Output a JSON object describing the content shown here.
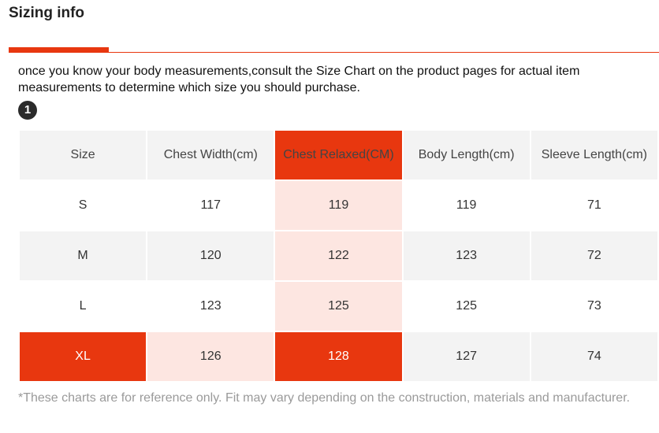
{
  "header": {
    "title": "Sizing info"
  },
  "intro_text": "once you know your body measurements,consult the Size Chart on the product pages for actual item measurements to determine which size you should purchase.",
  "step_badge": "1",
  "table": {
    "columns": [
      "Size",
      "Chest Width(cm)",
      "Chest Relaxed(CM)",
      "Body Length(cm)",
      "Sleeve Length(cm)"
    ],
    "highlighted_column": "Chest Relaxed(CM)",
    "highlighted_row": "XL",
    "rows": [
      [
        "S",
        "117",
        "119",
        "119",
        "71"
      ],
      [
        "M",
        "120",
        "122",
        "123",
        "72"
      ],
      [
        "L",
        "123",
        "125",
        "125",
        "73"
      ],
      [
        "XL",
        "126",
        "128",
        "127",
        "74"
      ]
    ]
  },
  "footnote": "*These charts are for reference only. Fit may vary depending on the construction, materials and manufacturer.",
  "colors": {
    "accent": "#e8370f",
    "highlight_soft": "#fde6e1",
    "row_alt": "#f3f3f3"
  }
}
